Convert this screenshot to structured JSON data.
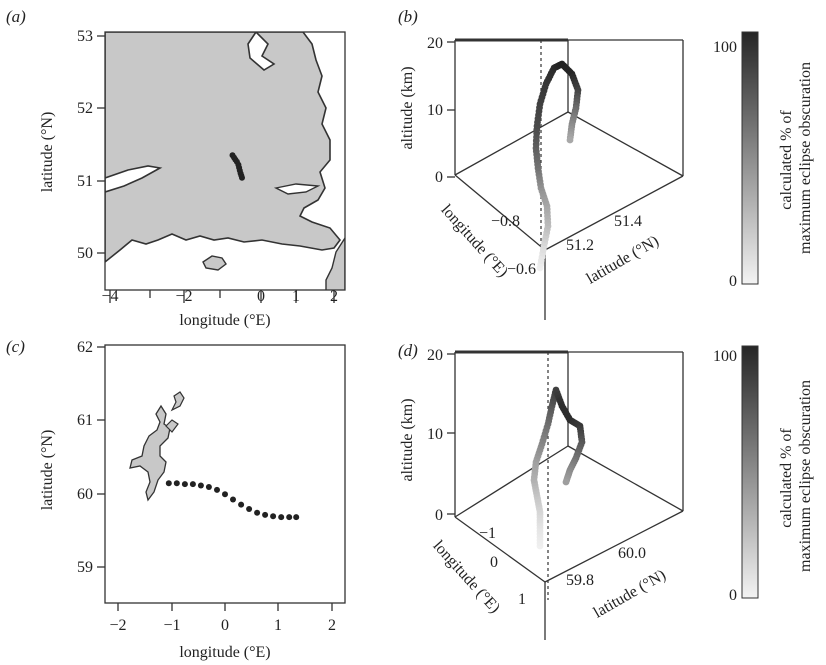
{
  "figure": {
    "panel_labels": [
      "(a)",
      "(b)",
      "(c)",
      "(d)"
    ]
  },
  "colors": {
    "land": "#c8c8c8",
    "frame": "#333333",
    "path_dark": "#222222",
    "path_light": "#f0f0f0"
  },
  "chart_data": [
    {
      "panel": "(a)",
      "type": "scatter",
      "title": "",
      "xlabel": "longitude (°E)",
      "ylabel": "latitude (°N)",
      "xlim": [
        -4.5,
        2.3
      ],
      "ylim": [
        49.9,
        53.05
      ],
      "xticks": [
        -4,
        -2,
        0,
        1,
        2
      ],
      "xtick_labels": [
        "−4",
        "−2",
        "0",
        "1",
        "2"
      ],
      "yticks": [
        50,
        51,
        52,
        53
      ],
      "ytick_labels": [
        "50",
        "51",
        "52",
        "53"
      ],
      "map_region": "southern England (filled land)",
      "series": [
        {
          "x": [
            -0.78,
            -0.74,
            -0.7,
            -0.66,
            -0.62,
            -0.6,
            -0.58,
            -0.56,
            -0.54,
            -0.52
          ],
          "y": [
            51.35,
            51.32,
            51.29,
            51.26,
            51.22,
            51.18,
            51.14,
            51.1,
            51.07,
            51.04
          ]
        }
      ]
    },
    {
      "panel": "(b)",
      "type": "scatter",
      "title": "",
      "zlabel": "altitude (km)",
      "xlabel": "longitude (°E)",
      "ylabel": "latitude (°N)",
      "zlim": [
        0,
        20
      ],
      "zticks": [
        0,
        10,
        20
      ],
      "xticks": [
        -0.8,
        -0.6
      ],
      "xtick_labels": [
        "−0.8",
        "−0.6"
      ],
      "yticks": [
        51.2,
        51.4
      ],
      "ytick_labels": [
        "51.2",
        "51.4"
      ],
      "colorbar": {
        "label": "calculated % of maximum eclipse obscuration",
        "min_label": "0",
        "max_label": "100"
      }
    },
    {
      "panel": "(c)",
      "type": "scatter",
      "title": "",
      "xlabel": "longitude (°E)",
      "ylabel": "latitude (°N)",
      "xlim": [
        -2.3,
        2.3
      ],
      "ylim": [
        58.9,
        62.05
      ],
      "xticks": [
        -2,
        -1,
        0,
        1,
        2
      ],
      "xtick_labels": [
        "−2",
        "−1",
        "0",
        "1",
        "2"
      ],
      "yticks": [
        59,
        60,
        61,
        62
      ],
      "ytick_labels": [
        "59",
        "60",
        "61",
        "62"
      ],
      "map_region": "Shetland Islands (filled land)",
      "series": [
        {
          "x": [
            -1.05,
            -0.9,
            -0.75,
            -0.6,
            -0.45,
            -0.3,
            -0.15,
            0.0,
            0.15,
            0.3,
            0.45,
            0.6,
            0.75,
            0.9,
            1.05,
            1.2,
            1.33
          ],
          "y": [
            60.14,
            60.14,
            60.13,
            60.13,
            60.11,
            60.09,
            60.05,
            59.99,
            59.92,
            59.85,
            59.79,
            59.74,
            59.71,
            59.69,
            59.68,
            59.68,
            59.68
          ]
        }
      ]
    },
    {
      "panel": "(d)",
      "type": "scatter",
      "title": "",
      "zlabel": "altitude (km)",
      "xlabel": "longitude (°E)",
      "ylabel": "latitude (°N)",
      "zlim": [
        0,
        20
      ],
      "zticks": [
        0,
        10,
        20
      ],
      "xticks": [
        -1,
        0,
        1
      ],
      "xtick_labels": [
        "−1",
        "0",
        "1"
      ],
      "yticks": [
        59.8,
        60.0
      ],
      "ytick_labels": [
        "59.8",
        "60.0"
      ],
      "colorbar": {
        "label": "calculated % of maximum eclipse obscuration",
        "min_label": "0",
        "max_label": "100"
      }
    }
  ]
}
